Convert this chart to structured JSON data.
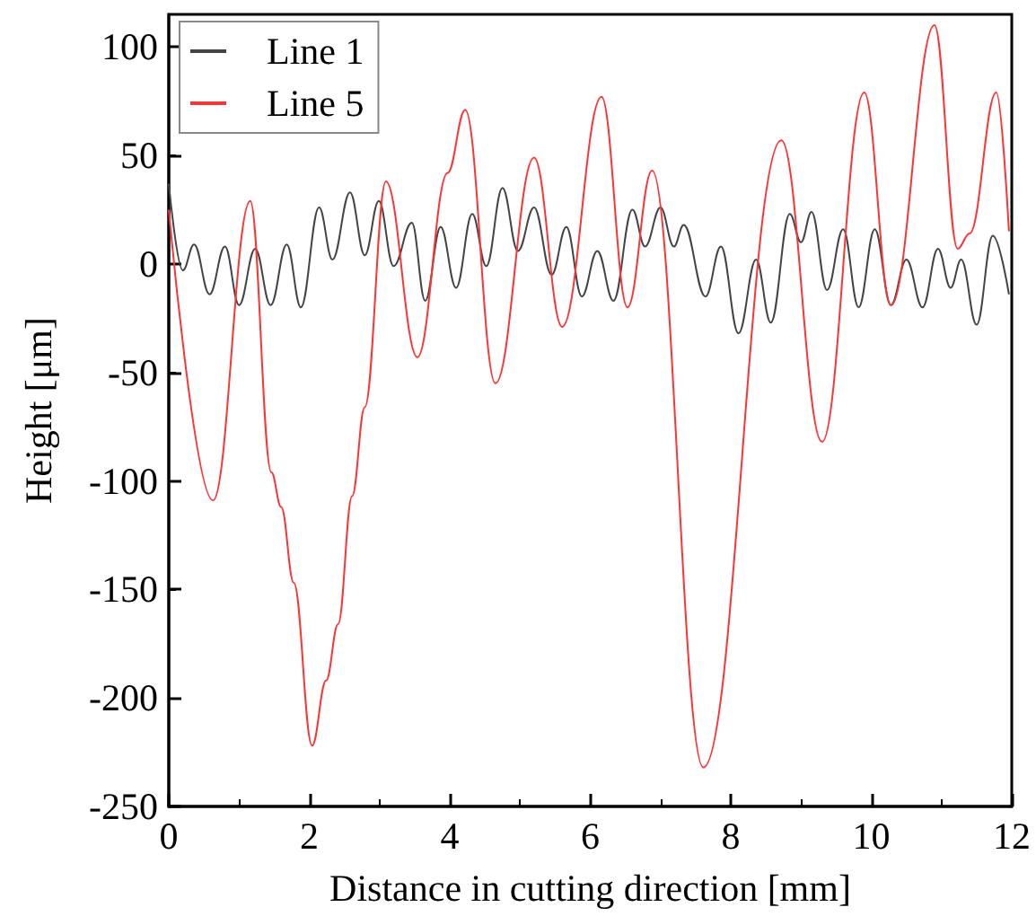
{
  "chart_data": {
    "type": "line",
    "xlabel": "Distance in cutting direction [mm]",
    "ylabel": "Height [μm]",
    "xlim": [
      0,
      12
    ],
    "xticks": [
      0,
      2,
      4,
      6,
      8,
      10,
      12
    ],
    "ylim": [
      -250,
      115
    ],
    "yticks": [
      -250,
      -200,
      -150,
      -100,
      -50,
      0,
      50,
      100
    ],
    "grid": false,
    "legend": "top left",
    "marker": "none",
    "line_style": "solid",
    "series": [
      {
        "name": "Line 1",
        "color": "#444444",
        "x": [
          0,
          0.2,
          0.36,
          0.58,
          0.8,
          1.0,
          1.23,
          1.45,
          1.68,
          1.88,
          2.14,
          2.33,
          2.58,
          2.79,
          2.99,
          3.2,
          3.46,
          3.65,
          3.87,
          4.09,
          4.32,
          4.52,
          4.75,
          4.97,
          5.2,
          5.45,
          5.66,
          5.88,
          6.1,
          6.33,
          6.6,
          6.78,
          7.0,
          7.19,
          7.33,
          7.64,
          7.86,
          8.11,
          8.36,
          8.57,
          8.84,
          9.0,
          9.15,
          9.37,
          9.6,
          9.82,
          10.05,
          10.28,
          10.5,
          10.73,
          10.95,
          11.13,
          11.28,
          11.5,
          11.73,
          11.96
        ],
        "values": [
          37,
          -3,
          9,
          -14,
          8,
          -19,
          7,
          -19,
          9,
          -20,
          26,
          2,
          33,
          4,
          29,
          -1,
          19,
          -17,
          17,
          -11,
          23,
          -1,
          35,
          6,
          26,
          -5,
          17,
          -15,
          6,
          -17,
          25,
          8,
          26,
          8,
          18,
          -15,
          8,
          -32,
          2,
          -27,
          23,
          10,
          24,
          -12,
          16,
          -20,
          16,
          -19,
          2,
          -20,
          7,
          -11,
          2,
          -28,
          13,
          -14
        ]
      },
      {
        "name": "Line 5",
        "color": "#ff3333",
        "x": [
          0,
          0.63,
          1.16,
          1.46,
          1.6,
          1.78,
          2.04,
          2.24,
          2.41,
          2.61,
          2.79,
          3.09,
          3.54,
          3.97,
          4.22,
          4.65,
          5.2,
          5.6,
          6.16,
          6.53,
          6.88,
          7.61,
          8.72,
          9.3,
          9.9,
          10.28,
          10.9,
          11.23,
          11.4,
          11.78,
          11.96
        ],
        "values": [
          25,
          -109,
          29,
          -96,
          -112,
          -147,
          -222,
          -192,
          -166,
          -107,
          -66,
          38,
          -43,
          42,
          71,
          -55,
          49,
          -29,
          77,
          -20,
          43,
          -232,
          57,
          -82,
          79,
          -19,
          110,
          7,
          14,
          79,
          15
        ]
      }
    ]
  }
}
